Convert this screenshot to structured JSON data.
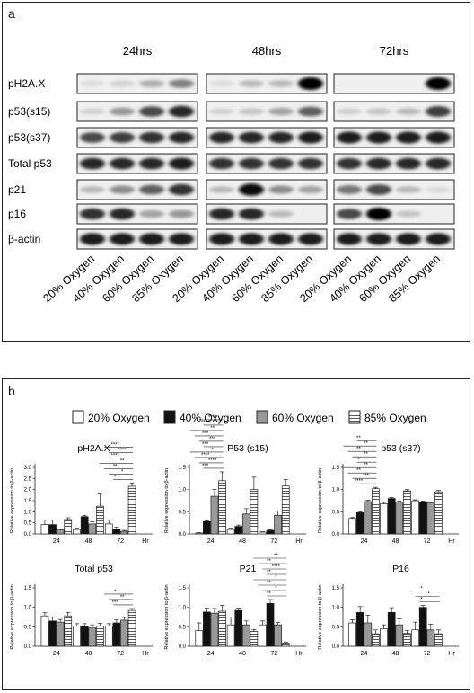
{
  "panel_a": {
    "label": "a",
    "timepoints": [
      "24hrs",
      "48hrs",
      "72hrs"
    ],
    "proteins": [
      "pH2A.X",
      "p53(s15)",
      "p53(s37)",
      "Total p53",
      "p21",
      "p16",
      "β-actin"
    ],
    "lanes": [
      "20% Oxygen",
      "40% Oxygen",
      "60% Oxygen",
      "85% Oxygen"
    ],
    "blot_intensity": {
      "24hrs": [
        [
          0.05,
          0.1,
          0.25,
          0.45
        ],
        [
          0.1,
          0.35,
          0.7,
          0.85
        ],
        [
          0.7,
          0.75,
          0.8,
          0.85
        ],
        [
          0.85,
          0.85,
          0.85,
          0.9
        ],
        [
          0.2,
          0.4,
          0.6,
          0.8
        ],
        [
          0.8,
          0.85,
          0.3,
          0.35
        ],
        [
          0.9,
          0.9,
          0.9,
          0.9
        ]
      ],
      "48hrs": [
        [
          0.05,
          0.2,
          0.2,
          1.0
        ],
        [
          0.1,
          0.15,
          0.3,
          0.6
        ],
        [
          0.85,
          0.85,
          0.85,
          0.9
        ],
        [
          0.8,
          0.8,
          0.8,
          0.8
        ],
        [
          0.2,
          0.95,
          0.4,
          0.3
        ],
        [
          0.85,
          0.85,
          0.2,
          0.0
        ],
        [
          0.9,
          0.9,
          0.9,
          0.9
        ]
      ],
      "72hrs": [
        [
          0.0,
          0.0,
          0.0,
          1.0
        ],
        [
          0.1,
          0.15,
          0.2,
          0.75
        ],
        [
          0.9,
          0.9,
          0.9,
          0.9
        ],
        [
          0.8,
          0.85,
          0.85,
          0.85
        ],
        [
          0.5,
          0.7,
          0.2,
          0.05
        ],
        [
          0.7,
          1.0,
          0.15,
          0.0
        ],
        [
          0.9,
          0.9,
          0.9,
          0.9
        ]
      ]
    }
  },
  "panel_b": {
    "label": "b",
    "legend": [
      "20% Oxygen",
      "40% Oxygen",
      "60% Oxygen",
      "85% Oxygen"
    ],
    "ylabel": "Relative expression to β-actin",
    "hr_label": "Hr",
    "colors": {
      "o20": "#ffffff",
      "o40": "#111111",
      "o60": "#999999"
    }
  },
  "chart_data": [
    {
      "type": "bar",
      "title": "pH2A.X",
      "categories": [
        "24",
        "48",
        "72"
      ],
      "ylim": [
        0,
        3.0
      ],
      "yticks": [
        "0.0",
        "0.5",
        "1.0",
        "1.5",
        "2.0",
        "2.5",
        "3.0"
      ],
      "series": [
        {
          "name": "20% Oxygen",
          "values": [
            0.42,
            0.2,
            0.45
          ],
          "errors": [
            0.2,
            0.06,
            0.18
          ]
        },
        {
          "name": "40% Oxygen",
          "values": [
            0.42,
            0.78,
            0.2
          ],
          "errors": [
            0.2,
            0.06,
            0.1
          ]
        },
        {
          "name": "60% Oxygen",
          "values": [
            0.18,
            0.45,
            0.12
          ],
          "errors": [
            0.05,
            0.1,
            0.04
          ]
        },
        {
          "name": "85% Oxygen",
          "values": [
            0.65,
            1.25,
            2.15
          ],
          "errors": [
            0.08,
            0.55,
            0.15
          ]
        }
      ],
      "significance": [
        "*",
        "*",
        "**",
        "**",
        "****",
        "****",
        "****"
      ]
    },
    {
      "type": "bar",
      "title": "P53 (s15)",
      "categories": [
        "24",
        "48",
        "72"
      ],
      "ylim": [
        0,
        1.5
      ],
      "yticks": [
        "0.0",
        "0.5",
        "1.0",
        "1.5"
      ],
      "series": [
        {
          "name": "20% Oxygen",
          "values": [
            0.02,
            0.1,
            0.04
          ],
          "errors": [
            0.01,
            0.03,
            0.01
          ]
        },
        {
          "name": "40% Oxygen",
          "values": [
            0.28,
            0.17,
            0.08
          ],
          "errors": [
            0.02,
            0.03,
            0.01
          ]
        },
        {
          "name": "60% Oxygen",
          "values": [
            0.85,
            0.45,
            0.42
          ],
          "errors": [
            0.15,
            0.12,
            0.1
          ]
        },
        {
          "name": "85% Oxygen",
          "values": [
            1.2,
            1.0,
            1.08
          ],
          "errors": [
            0.2,
            0.28,
            0.15
          ]
        }
      ],
      "significance": [
        "***",
        "****",
        "****",
        "*",
        "***",
        "***",
        "***",
        "**",
        "****",
        "****"
      ]
    },
    {
      "type": "bar",
      "title": "p53 (s37)",
      "categories": [
        "24",
        "48",
        "72"
      ],
      "ylim": [
        0,
        1.5
      ],
      "yticks": [
        "0.0",
        "0.5",
        "1.0",
        "1.5"
      ],
      "series": [
        {
          "name": "20% Oxygen",
          "values": [
            0.35,
            0.68,
            0.75
          ],
          "errors": [
            0.02,
            0.03,
            0.02
          ]
        },
        {
          "name": "40% Oxygen",
          "values": [
            0.48,
            0.8,
            0.72
          ],
          "errors": [
            0.02,
            0.02,
            0.02
          ]
        },
        {
          "name": "60% Oxygen",
          "values": [
            0.73,
            0.72,
            0.7
          ],
          "errors": [
            0.03,
            0.02,
            0.02
          ]
        },
        {
          "name": "85% Oxygen",
          "values": [
            1.02,
            0.97,
            0.95
          ],
          "errors": [
            0.03,
            0.03,
            0.03
          ]
        }
      ],
      "significance": [
        "****",
        "***",
        "**",
        "**",
        "*",
        "**",
        "**",
        "**",
        "**"
      ]
    },
    {
      "type": "bar",
      "title": "Total p53",
      "categories": [
        "24",
        "48",
        "72"
      ],
      "ylim": [
        0,
        1.5
      ],
      "yticks": [
        "0.0",
        "0.5",
        "1.0",
        "1.5"
      ],
      "series": [
        {
          "name": "20% Oxygen",
          "values": [
            0.78,
            0.52,
            0.52
          ],
          "errors": [
            0.08,
            0.06,
            0.06
          ]
        },
        {
          "name": "40% Oxygen",
          "values": [
            0.65,
            0.5,
            0.6
          ],
          "errors": [
            0.1,
            0.08,
            0.08
          ]
        },
        {
          "name": "60% Oxygen",
          "values": [
            0.62,
            0.47,
            0.67
          ],
          "errors": [
            0.07,
            0.08,
            0.07
          ]
        },
        {
          "name": "85% Oxygen",
          "values": [
            0.78,
            0.52,
            0.92
          ],
          "errors": [
            0.09,
            0.07,
            0.05
          ]
        }
      ],
      "significance": [
        "***",
        "**",
        "*"
      ]
    },
    {
      "type": "bar",
      "title": "P21",
      "categories": [
        "24",
        "48",
        "72"
      ],
      "ylim": [
        0,
        1.5
      ],
      "yticks": [
        "0.0",
        "0.5",
        "1.0",
        "1.5"
      ],
      "series": [
        {
          "name": "20% Oxygen",
          "values": [
            0.4,
            0.55,
            0.55
          ],
          "errors": [
            0.2,
            0.2,
            0.1
          ]
        },
        {
          "name": "40% Oxygen",
          "values": [
            0.88,
            0.92,
            1.1
          ],
          "errors": [
            0.1,
            0.06,
            0.1
          ]
        },
        {
          "name": "60% Oxygen",
          "values": [
            0.85,
            0.55,
            0.55
          ],
          "errors": [
            0.12,
            0.1,
            0.06
          ]
        },
        {
          "name": "85% Oxygen",
          "values": [
            0.9,
            0.38,
            0.08
          ],
          "errors": [
            0.15,
            0.05,
            0.02
          ]
        }
      ],
      "significance": [
        "**",
        "*",
        "**",
        "*",
        "**",
        "****",
        "**",
        "**"
      ]
    },
    {
      "type": "bar",
      "title": "P16",
      "categories": [
        "24",
        "48",
        "72"
      ],
      "ylim": [
        0,
        1.5
      ],
      "yticks": [
        "0.0",
        "0.5",
        "1.0",
        "1.5"
      ],
      "series": [
        {
          "name": "20% Oxygen",
          "values": [
            0.6,
            0.45,
            0.42
          ],
          "errors": [
            0.08,
            0.1,
            0.2
          ]
        },
        {
          "name": "40% Oxygen",
          "values": [
            0.87,
            0.87,
            1.0
          ],
          "errors": [
            0.15,
            0.12,
            0.05
          ]
        },
        {
          "name": "60% Oxygen",
          "values": [
            0.6,
            0.55,
            0.42
          ],
          "errors": [
            0.2,
            0.15,
            0.15
          ]
        },
        {
          "name": "85% Oxygen",
          "values": [
            0.32,
            0.33,
            0.32
          ],
          "errors": [
            0.1,
            0.08,
            0.1
          ]
        }
      ],
      "significance": [
        "*",
        "*",
        "*"
      ]
    }
  ]
}
